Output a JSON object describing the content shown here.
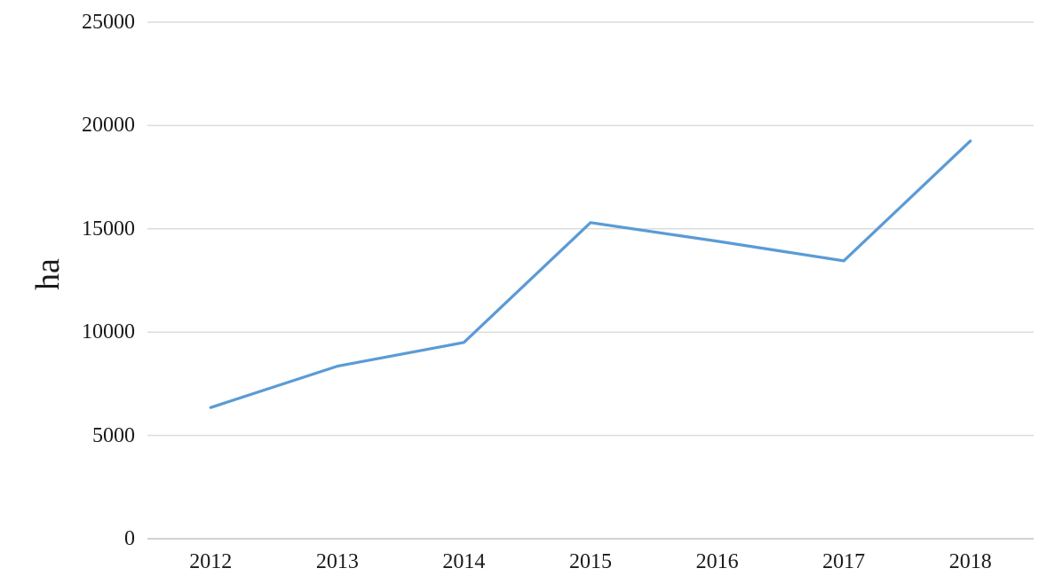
{
  "chart_data": {
    "type": "line",
    "title": "",
    "xlabel": "",
    "ylabel": "ha",
    "categories": [
      "2012",
      "2013",
      "2014",
      "2015",
      "2016",
      "2017",
      "2018"
    ],
    "series": [
      {
        "name": "ha",
        "values": [
          6350,
          8350,
          9500,
          15300,
          14400,
          13450,
          19250
        ],
        "color": "#5B9BD5"
      }
    ],
    "ylim": [
      0,
      25000
    ],
    "yticks": [
      0,
      5000,
      10000,
      15000,
      20000,
      25000
    ],
    "ytick_labels": [
      "0",
      "5000",
      "10000",
      "15000",
      "20000",
      "25000"
    ],
    "grid": "horizontal",
    "legend": "none",
    "markers": "none"
  },
  "colors": {
    "line": "#5B9BD5",
    "gridline": "#DCDCDC",
    "axis": "#D2D2D2",
    "text": "#1A1A1A",
    "background": "#FFFFFF"
  }
}
